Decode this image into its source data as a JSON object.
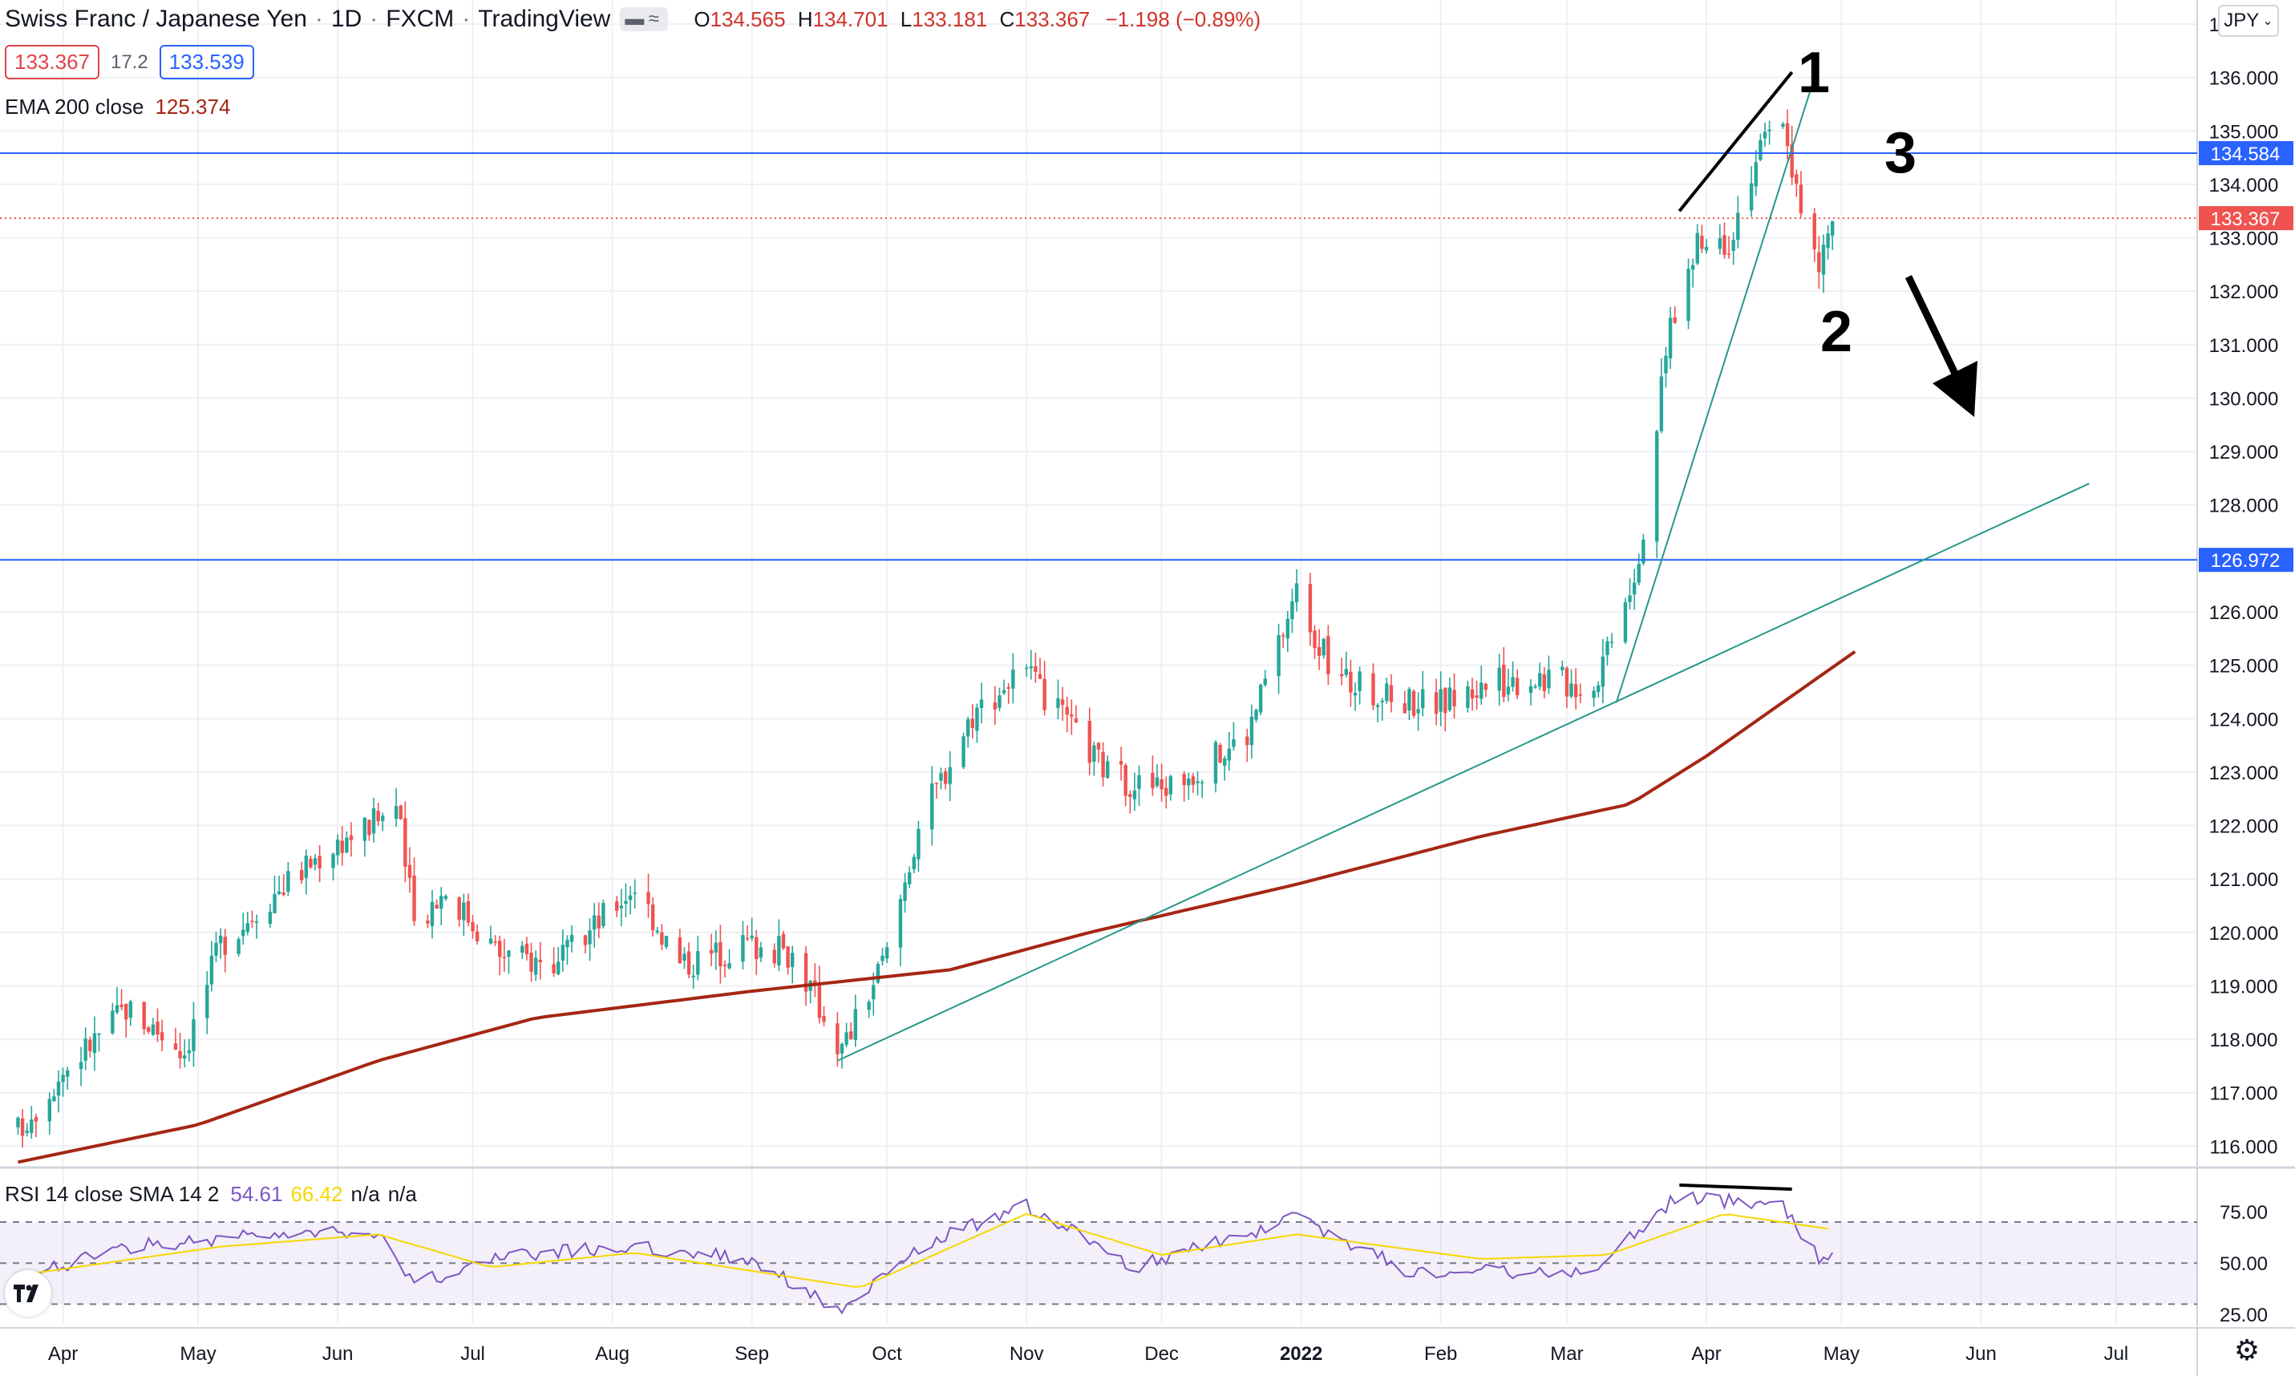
{
  "header": {
    "symbol": "Swiss Franc / Japanese Yen",
    "interval": "1D",
    "exchange": "FXCM",
    "platform": "TradingView",
    "ohlc": {
      "o_label": "O",
      "o": "134.565",
      "h_label": "H",
      "h": "134.701",
      "l_label": "L",
      "l": "133.181",
      "c_label": "C",
      "c": "133.367",
      "change": "−1.198 (−0.89%)"
    },
    "bid": "133.367",
    "spread": "17.2",
    "ask": "133.539",
    "currency_button": "JPY"
  },
  "indicators": {
    "ema": {
      "label": "EMA 200 close",
      "value": "125.374",
      "color": "#a52714"
    },
    "rsi": {
      "label": "RSI 14 close SMA 14 2",
      "value": "54.61",
      "sma_value": "66.42",
      "na1": "n/a",
      "na2": "n/a",
      "line_color": "#7e57c2",
      "sma_color": "#f5d800"
    }
  },
  "colors": {
    "up": "#26a69a",
    "down": "#ef5350",
    "hline": "#2962ff",
    "trend": "#26988a",
    "grid": "#eef0f4"
  },
  "chart_data": {
    "type": "candlestick",
    "title": "Swiss Franc / Japanese Yen · 1D · FXCM",
    "y_axis": {
      "ylim": [
        115.7,
        137.4
      ],
      "ticks": [
        "116.000",
        "117.000",
        "118.000",
        "119.000",
        "120.000",
        "121.000",
        "122.000",
        "123.000",
        "124.000",
        "125.000",
        "126.000",
        "127.000",
        "128.000",
        "129.000",
        "130.000",
        "131.000",
        "132.000",
        "133.000",
        "134.000",
        "135.000",
        "136.000",
        "137.000"
      ]
    },
    "x_axis": {
      "ticks": [
        "Apr",
        "May",
        "Jun",
        "Jul",
        "Aug",
        "Sep",
        "Oct",
        "Nov",
        "Dec",
        "2022",
        "Feb",
        "Mar",
        "Apr",
        "May",
        "Jun",
        "Jul"
      ]
    },
    "close_path": [
      {
        "date": "2021-03-22",
        "value": 116.3
      },
      {
        "date": "2021-04-01",
        "value": 117.4
      },
      {
        "date": "2021-04-15",
        "value": 118.6
      },
      {
        "date": "2021-04-28",
        "value": 117.8
      },
      {
        "date": "2021-05-06",
        "value": 119.8
      },
      {
        "date": "2021-05-20",
        "value": 120.9
      },
      {
        "date": "2021-06-01",
        "value": 121.7
      },
      {
        "date": "2021-06-08",
        "value": 122.0
      },
      {
        "date": "2021-06-14",
        "value": 122.4
      },
      {
        "date": "2021-06-18",
        "value": 120.2
      },
      {
        "date": "2021-06-25",
        "value": 120.8
      },
      {
        "date": "2021-07-07",
        "value": 119.6
      },
      {
        "date": "2021-07-20",
        "value": 119.4
      },
      {
        "date": "2021-07-30",
        "value": 120.3
      },
      {
        "date": "2021-08-06",
        "value": 120.9
      },
      {
        "date": "2021-08-16",
        "value": 119.4
      },
      {
        "date": "2021-08-31",
        "value": 119.8
      },
      {
        "date": "2021-09-10",
        "value": 119.6
      },
      {
        "date": "2021-09-21",
        "value": 117.8
      },
      {
        "date": "2021-10-01",
        "value": 119.6
      },
      {
        "date": "2021-10-08",
        "value": 122.0
      },
      {
        "date": "2021-10-20",
        "value": 124.1
      },
      {
        "date": "2021-10-31",
        "value": 124.9
      },
      {
        "date": "2021-11-10",
        "value": 123.9
      },
      {
        "date": "2021-11-20",
        "value": 122.9
      },
      {
        "date": "2021-12-01",
        "value": 122.7
      },
      {
        "date": "2021-12-10",
        "value": 123.1
      },
      {
        "date": "2021-12-20",
        "value": 123.7
      },
      {
        "date": "2021-12-31",
        "value": 126.4
      },
      {
        "date": "2022-01-08",
        "value": 124.8
      },
      {
        "date": "2022-01-20",
        "value": 124.4
      },
      {
        "date": "2022-02-01",
        "value": 124.3
      },
      {
        "date": "2022-02-10",
        "value": 124.6
      },
      {
        "date": "2022-02-22",
        "value": 124.8
      },
      {
        "date": "2022-03-07",
        "value": 124.6
      },
      {
        "date": "2022-03-11",
        "value": 125.7
      },
      {
        "date": "2022-03-17",
        "value": 127.0
      },
      {
        "date": "2022-03-24",
        "value": 131.4
      },
      {
        "date": "2022-03-30",
        "value": 132.8
      },
      {
        "date": "2022-04-06",
        "value": 133.0
      },
      {
        "date": "2022-04-12",
        "value": 134.5
      },
      {
        "date": "2022-04-18",
        "value": 135.3
      },
      {
        "date": "2022-04-22",
        "value": 133.4
      },
      {
        "date": "2022-04-26",
        "value": 132.4
      },
      {
        "date": "2022-04-29",
        "value": 133.367
      }
    ],
    "ema200": [
      {
        "date": "2021-03-22",
        "value": 115.7
      },
      {
        "date": "2021-05-01",
        "value": 116.4
      },
      {
        "date": "2021-06-10",
        "value": 117.6
      },
      {
        "date": "2021-07-15",
        "value": 118.4
      },
      {
        "date": "2021-09-01",
        "value": 118.9
      },
      {
        "date": "2021-10-15",
        "value": 119.3
      },
      {
        "date": "2021-11-15",
        "value": 120.0
      },
      {
        "date": "2021-12-31",
        "value": 120.9
      },
      {
        "date": "2022-02-10",
        "value": 121.8
      },
      {
        "date": "2022-03-15",
        "value": 122.4
      },
      {
        "date": "2022-04-01",
        "value": 123.3
      },
      {
        "date": "2022-04-28",
        "value": 124.9
      },
      {
        "date": "2022-05-06",
        "value": 125.374
      }
    ],
    "horizontal_lines": [
      {
        "value": 134.584,
        "label": "134.584"
      },
      {
        "value": 126.972,
        "label": "126.972"
      }
    ],
    "last_price_label": "133.367",
    "trendlines": [
      {
        "from": {
          "date": "2021-09-20",
          "value": 117.6
        },
        "to": {
          "date": "2022-06-25",
          "value": 128.4
        }
      },
      {
        "from": {
          "date": "2022-03-12",
          "value": 124.3
        },
        "to": {
          "date": "2022-04-25",
          "value": 136.0
        }
      },
      {
        "from": {
          "date": "2022-03-26",
          "value": 133.5
        },
        "to": {
          "date": "2022-04-20",
          "value": 136.1
        }
      }
    ],
    "annotations": [
      "1",
      "2",
      "3"
    ],
    "rsi_panel": {
      "ylim": [
        20,
        95
      ],
      "ticks": [
        "25.00",
        "50.00",
        "75.00"
      ],
      "upper": 70,
      "mid": 50,
      "lower": 30,
      "rsi_path": [
        {
          "date": "2021-03-22",
          "value": 42
        },
        {
          "date": "2021-04-15",
          "value": 58
        },
        {
          "date": "2021-05-06",
          "value": 62
        },
        {
          "date": "2021-06-10",
          "value": 66
        },
        {
          "date": "2021-06-18",
          "value": 40
        },
        {
          "date": "2021-07-10",
          "value": 54
        },
        {
          "date": "2021-08-06",
          "value": 58
        },
        {
          "date": "2021-09-01",
          "value": 52
        },
        {
          "date": "2021-09-21",
          "value": 26
        },
        {
          "date": "2021-10-10",
          "value": 60
        },
        {
          "date": "2021-11-01",
          "value": 78
        },
        {
          "date": "2021-11-25",
          "value": 48
        },
        {
          "date": "2021-12-31",
          "value": 72
        },
        {
          "date": "2022-01-25",
          "value": 46
        },
        {
          "date": "2022-03-07",
          "value": 46
        },
        {
          "date": "2022-03-25",
          "value": 82
        },
        {
          "date": "2022-04-18",
          "value": 78
        },
        {
          "date": "2022-04-26",
          "value": 52
        },
        {
          "date": "2022-04-29",
          "value": 54.61
        }
      ],
      "sma_path": [
        {
          "date": "2021-03-22",
          "value": 44
        },
        {
          "date": "2021-05-06",
          "value": 58
        },
        {
          "date": "2021-06-10",
          "value": 64
        },
        {
          "date": "2021-07-05",
          "value": 48
        },
        {
          "date": "2021-08-06",
          "value": 55
        },
        {
          "date": "2021-09-25",
          "value": 38
        },
        {
          "date": "2021-11-01",
          "value": 74
        },
        {
          "date": "2021-12-01",
          "value": 54
        },
        {
          "date": "2021-12-31",
          "value": 64
        },
        {
          "date": "2022-02-10",
          "value": 52
        },
        {
          "date": "2022-03-10",
          "value": 54
        },
        {
          "date": "2022-04-05",
          "value": 74
        },
        {
          "date": "2022-04-29",
          "value": 66.42
        }
      ],
      "divergence_line": {
        "from": {
          "date": "2022-03-26",
          "value": 88
        },
        "to": {
          "date": "2022-04-20",
          "value": 86
        }
      }
    }
  }
}
